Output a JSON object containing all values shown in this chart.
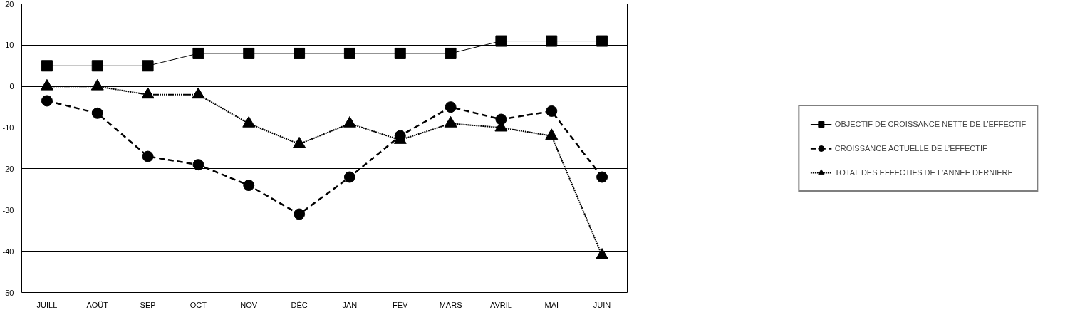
{
  "chart_data": {
    "type": "line",
    "categories": [
      "JUILL",
      "AOÛT",
      "SEP",
      "OCT",
      "NOV",
      "DÉC",
      "JAN",
      "FÉV",
      "MARS",
      "AVRIL",
      "MAI",
      "JUIN"
    ],
    "series": [
      {
        "name": "OBJECTIF DE CROISSANCE NETTE DE L’EFFECTIF",
        "color": "#000000",
        "marker": "square",
        "line_style": "solid",
        "values": [
          5,
          5,
          5,
          8,
          8,
          8,
          8,
          8,
          8,
          11,
          11,
          11
        ]
      },
      {
        "name": "CROISSANCE ACTUELLE DE L’EFFECTIF",
        "color": "#000000",
        "marker": "circle",
        "line_style": "dashed",
        "values": [
          -3.5,
          -6.5,
          -17,
          -19,
          -24,
          -31,
          -22,
          -12,
          -5,
          -8,
          -6,
          -22
        ]
      },
      {
        "name": "TOTAL DES EFFECTIFS DE L'ANNEE DERNIERE",
        "color": "#000000",
        "marker": "triangle",
        "line_style": "dotted",
        "values": [
          0,
          0,
          -2,
          -2,
          -9,
          -14,
          -9,
          -13,
          -9,
          -10,
          -12,
          -41
        ]
      }
    ],
    "ylim": [
      -50,
      20
    ],
    "yticks": [
      -50,
      -40,
      -30,
      -20,
      -10,
      0,
      10,
      20
    ],
    "grid": "y",
    "legend": "right"
  }
}
